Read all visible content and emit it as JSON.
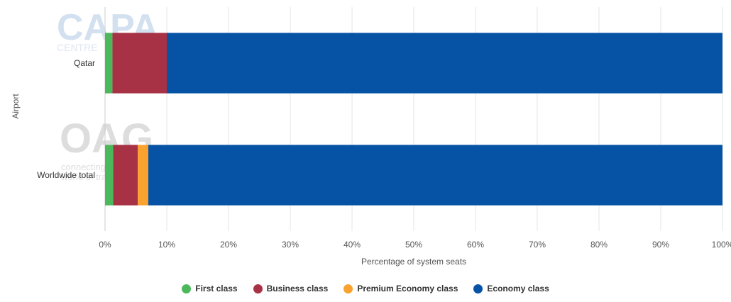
{
  "chart_data": {
    "type": "bar",
    "orientation": "horizontal",
    "stacked": true,
    "categories": [
      "Qatar",
      "Worldwide total"
    ],
    "series": [
      {
        "name": "First class",
        "color": "#4cb85c",
        "values": [
          1.2,
          1.3
        ]
      },
      {
        "name": "Business class",
        "color": "#a83245",
        "values": [
          8.8,
          4.0
        ]
      },
      {
        "name": "Premium Economy class",
        "color": "#f9a22f",
        "values": [
          0,
          1.7
        ]
      },
      {
        "name": "Economy class",
        "color": "#0653a5",
        "values": [
          90.0,
          93.0
        ]
      }
    ],
    "xlabel": "Percentage of system seats",
    "ylabel": "Airport",
    "xlim": [
      0,
      100
    ],
    "xticks": [
      0,
      10,
      20,
      30,
      40,
      50,
      60,
      70,
      80,
      90,
      100
    ],
    "xtick_labels": [
      "0%",
      "10%",
      "20%",
      "30%",
      "40%",
      "50%",
      "60%",
      "70%",
      "80%",
      "90%",
      "100%"
    ],
    "grid": true,
    "legend_position": "bottom-center"
  },
  "watermarks": {
    "top": "CAPA CENTRE FOR AVIATION",
    "bottom": "OAG connecting the world of travel"
  }
}
